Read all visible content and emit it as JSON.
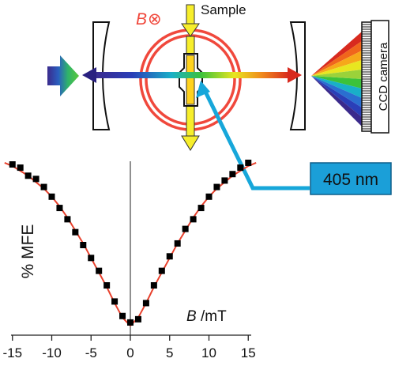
{
  "setup": {
    "field_label": "B",
    "field_symbol": "⊗",
    "sample_label": "Sample",
    "camera_label": "CCD camera",
    "laser_label": "405 nm",
    "colors": {
      "magnet": "#f0483c",
      "laser": "#17a7da",
      "sample_arrow": "#f7ee2b",
      "sample_cell": "#ffd21e"
    }
  },
  "chart_data": {
    "type": "scatter",
    "title": "",
    "xlabel_var": "B",
    "xlabel_unit": " /mT",
    "ylabel": "% MFE",
    "xlim": [
      -16,
      16
    ],
    "ylim": [
      0,
      1
    ],
    "xticks": [
      -15,
      -10,
      -5,
      0,
      5,
      10,
      15
    ],
    "grid": false,
    "series": [
      {
        "kind": "points",
        "color": "#000000",
        "x": [
          -15,
          -14,
          -13,
          -12,
          -11,
          -10,
          -9,
          -8,
          -7,
          -6,
          -5,
          -4,
          -3,
          -2,
          -1,
          0,
          1,
          2,
          3,
          4,
          5,
          6,
          7,
          8,
          9,
          10,
          11,
          12,
          13,
          14,
          15
        ],
        "y": [
          1.0,
          0.98,
          0.93,
          0.91,
          0.86,
          0.8,
          0.73,
          0.66,
          0.58,
          0.5,
          0.42,
          0.34,
          0.25,
          0.15,
          0.06,
          0.02,
          0.04,
          0.14,
          0.25,
          0.34,
          0.43,
          0.51,
          0.6,
          0.66,
          0.73,
          0.8,
          0.86,
          0.9,
          0.94,
          0.98,
          1.01
        ]
      },
      {
        "kind": "fit",
        "color": "#e8412d",
        "x": [
          -16,
          -15,
          -14,
          -13,
          -12,
          -11,
          -10,
          -9,
          -8,
          -7,
          -6,
          -5,
          -4,
          -3,
          -2,
          -1,
          0,
          1,
          2,
          3,
          4,
          5,
          6,
          7,
          8,
          9,
          10,
          11,
          12,
          13,
          14,
          15,
          16
        ],
        "y": [
          1.01,
          0.99,
          0.96,
          0.93,
          0.89,
          0.85,
          0.8,
          0.74,
          0.67,
          0.59,
          0.51,
          0.42,
          0.33,
          0.24,
          0.14,
          0.05,
          0.0,
          0.05,
          0.14,
          0.24,
          0.33,
          0.42,
          0.51,
          0.59,
          0.67,
          0.74,
          0.8,
          0.85,
          0.89,
          0.93,
          0.96,
          0.99,
          1.01
        ]
      }
    ]
  }
}
